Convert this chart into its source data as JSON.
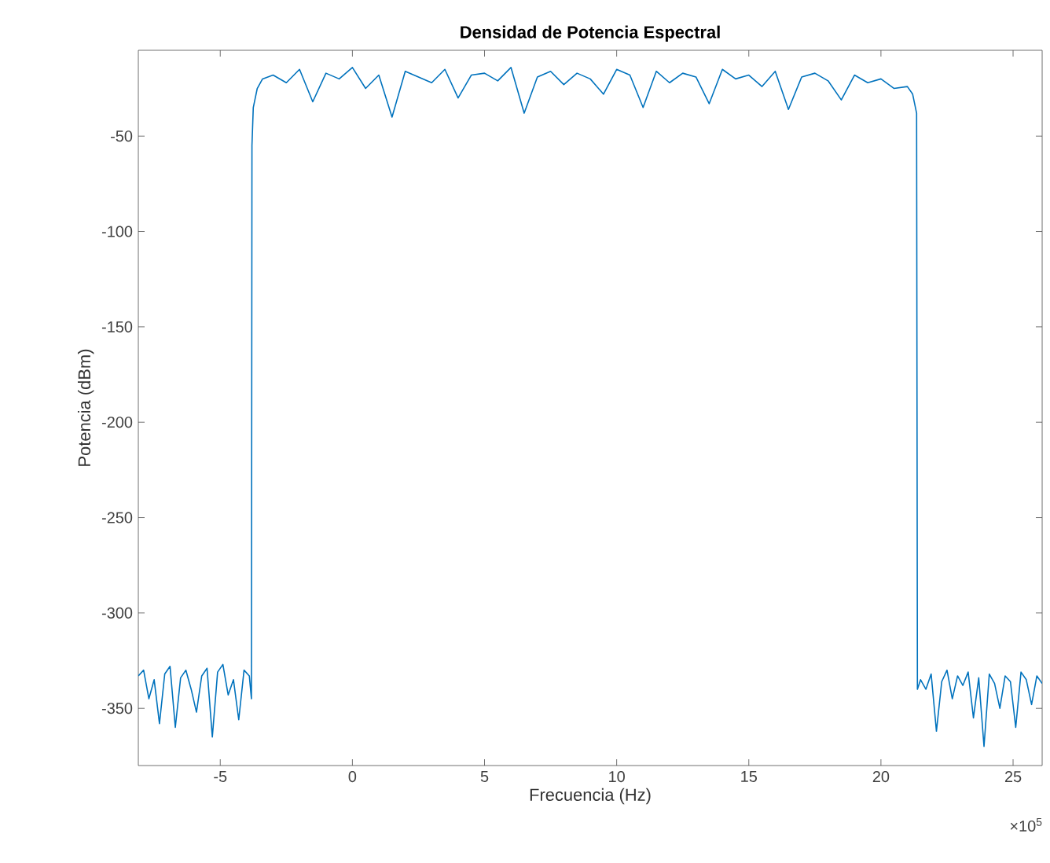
{
  "chart_data": {
    "type": "line",
    "title": "Densidad de Potencia Espectral",
    "xlabel": "Frecuencia (Hz)",
    "ylabel": "Potencia (dBm)",
    "annotations": [
      "×10$^{5}$"
    ],
    "color": "#0072bd",
    "x": [
      -8.1,
      -7.9,
      -7.7,
      -7.5,
      -7.3,
      -7.1,
      -6.9,
      -6.7,
      -6.5,
      -6.3,
      -6.1,
      -5.9,
      -5.7,
      -5.5,
      -5.3,
      -5.1,
      -4.9,
      -4.7,
      -4.5,
      -4.3,
      -4.1,
      -3.9,
      -3.82,
      -3.8,
      -3.75,
      -3.6,
      -3.4,
      -3.0,
      -2.5,
      -2.0,
      -1.5,
      -1.0,
      -0.5,
      0,
      0.5,
      1.0,
      1.5,
      2.0,
      2.5,
      3.0,
      3.5,
      4.0,
      4.5,
      5.0,
      5.5,
      6.0,
      6.5,
      7.0,
      7.5,
      8.0,
      8.5,
      9.0,
      9.5,
      10.0,
      10.5,
      11.0,
      11.5,
      12.0,
      12.5,
      13.0,
      13.5,
      14.0,
      14.5,
      15.0,
      15.5,
      16.0,
      16.5,
      17.0,
      17.5,
      18.0,
      18.5,
      19.0,
      19.5,
      20.0,
      20.5,
      21.0,
      21.2,
      21.35,
      21.38,
      21.5,
      21.7,
      21.9,
      22.1,
      22.3,
      22.5,
      22.7,
      22.9,
      23.1,
      23.3,
      23.5,
      23.7,
      23.9,
      24.1,
      24.3,
      24.5,
      24.7,
      24.9,
      25.1,
      25.3,
      25.5,
      25.7,
      25.9,
      26.1
    ],
    "values": [
      -333,
      -330,
      -345,
      -335,
      -358,
      -332,
      -328,
      -360,
      -334,
      -330,
      -340,
      -352,
      -333,
      -329,
      -365,
      -331,
      -327,
      -343,
      -335,
      -356,
      -330,
      -333,
      -345,
      -55,
      -35,
      -25,
      -20,
      -18,
      -22,
      -15,
      -32,
      -17,
      -20,
      -14,
      -25,
      -18,
      -40,
      -16,
      -19,
      -22,
      -15,
      -30,
      -18,
      -17,
      -21,
      -14,
      -38,
      -19,
      -16,
      -23,
      -17,
      -20,
      -28,
      -15,
      -18,
      -35,
      -16,
      -22,
      -17,
      -19,
      -33,
      -15,
      -20,
      -18,
      -24,
      -16,
      -36,
      -19,
      -17,
      -21,
      -31,
      -18,
      -22,
      -20,
      -25,
      -24,
      -28,
      -38,
      -340,
      -335,
      -340,
      -332,
      -362,
      -336,
      -330,
      -345,
      -333,
      -338,
      -331,
      -355,
      -334,
      -370,
      -332,
      -337,
      -350,
      -333,
      -336,
      -360,
      -331,
      -335,
      -348,
      -333,
      -337
    ],
    "xlim": [
      -8.1,
      26.1
    ],
    "ylim": [
      -380,
      -5
    ],
    "xticks": [
      -5,
      0,
      5,
      10,
      15,
      20,
      25
    ],
    "yticks": [
      -350,
      -300,
      -250,
      -200,
      -150,
      -100,
      -50
    ]
  }
}
